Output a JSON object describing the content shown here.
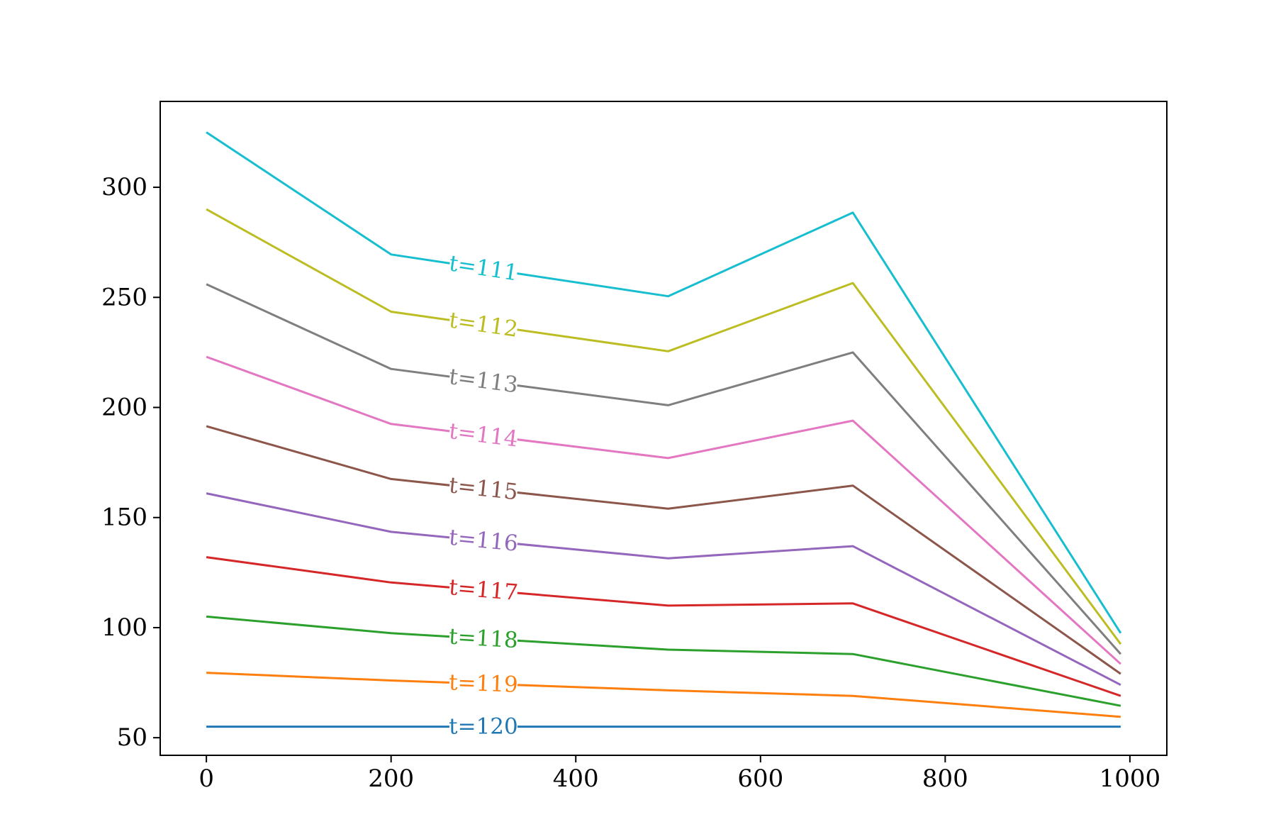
{
  "chart_data": {
    "type": "line",
    "title": "",
    "xlabel": "",
    "ylabel": "",
    "xlim": [
      -50,
      1040
    ],
    "ylim": [
      42,
      339
    ],
    "grid": false,
    "x": [
      0,
      200,
      500,
      700,
      990
    ],
    "xticks": [
      0,
      200,
      400,
      600,
      800,
      1000
    ],
    "yticks": [
      50,
      100,
      150,
      200,
      250,
      300
    ],
    "xtick_labels": [
      "0",
      "200",
      "400",
      "600",
      "800",
      "1000"
    ],
    "ytick_labels": [
      "50",
      "100",
      "150",
      "200",
      "250",
      "300"
    ],
    "series": [
      {
        "name": "t=120",
        "color": "#1f77b4",
        "values": [
          55,
          55,
          55,
          55,
          55
        ]
      },
      {
        "name": "t=119",
        "color": "#ff7f0e",
        "values": [
          79.5,
          76,
          71.5,
          69,
          59.5
        ]
      },
      {
        "name": "t=118",
        "color": "#2ca02c",
        "values": [
          105,
          97.5,
          90,
          88,
          64.5
        ]
      },
      {
        "name": "t=117",
        "color": "#d62728",
        "values": [
          132,
          120.5,
          110,
          111,
          69
        ]
      },
      {
        "name": "t=116",
        "color": "#9467bd",
        "values": [
          161,
          143.5,
          131.5,
          137,
          74
        ]
      },
      {
        "name": "t=115",
        "color": "#8c564b",
        "values": [
          191.5,
          167.5,
          154,
          164.5,
          79
        ]
      },
      {
        "name": "t=114",
        "color": "#e377c2",
        "values": [
          223,
          192.5,
          177,
          194,
          83.5
        ]
      },
      {
        "name": "t=113",
        "color": "#7f7f7f",
        "values": [
          256,
          217.5,
          201,
          225,
          88
        ]
      },
      {
        "name": "t=112",
        "color": "#bcbd22",
        "values": [
          290,
          243.5,
          225.5,
          256.5,
          92.5
        ]
      },
      {
        "name": "t=111",
        "color": "#17becf",
        "values": [
          325,
          269.5,
          250.5,
          288.5,
          97.5
        ]
      }
    ],
    "inline_label_x": 300
  }
}
